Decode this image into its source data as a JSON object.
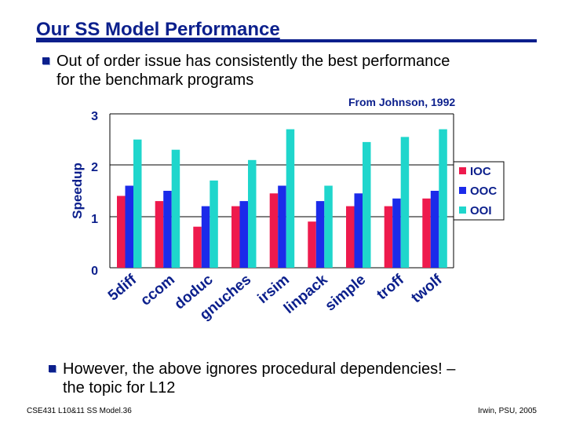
{
  "slide": {
    "title": "Our SS Model Performance",
    "bullet1": {
      "line1": "Out of order issue has consistently the best performance",
      "line2": "for the benchmark programs"
    },
    "source_note": "From Johnson, 1992",
    "bullet2": {
      "line1": "However, the above ignores procedural dependencies! –",
      "line2": "the topic for L12"
    },
    "footer_left": "CSE431  L10&11 SS Model.36",
    "footer_right": "Irwin, PSU, 2005"
  },
  "colors": {
    "title": "#0b1f8c",
    "IOC": "#ee1a4d",
    "OOC": "#1b2bea",
    "OOI": "#1fd6cc"
  },
  "chart_data": {
    "type": "bar",
    "title": "",
    "xlabel": "",
    "ylabel": "Speedup",
    "ylim": [
      0,
      3
    ],
    "yticks": [
      "0",
      "1",
      "2",
      "3"
    ],
    "grid": "horizontal",
    "legend_position": "right",
    "categories": [
      "5diff",
      "ccom",
      "doduc",
      "gnuches",
      "irsim",
      "linpack",
      "simple",
      "troff",
      "twolf"
    ],
    "series": [
      {
        "name": "IOC",
        "values": [
          1.4,
          1.3,
          0.8,
          1.2,
          1.45,
          0.9,
          1.2,
          1.2,
          1.35
        ]
      },
      {
        "name": "OOC",
        "values": [
          1.6,
          1.5,
          1.2,
          1.3,
          1.6,
          1.3,
          1.45,
          1.35,
          1.5
        ]
      },
      {
        "name": "OOI",
        "values": [
          2.5,
          2.3,
          1.7,
          2.1,
          2.7,
          1.6,
          2.45,
          2.55,
          2.7
        ]
      }
    ]
  }
}
